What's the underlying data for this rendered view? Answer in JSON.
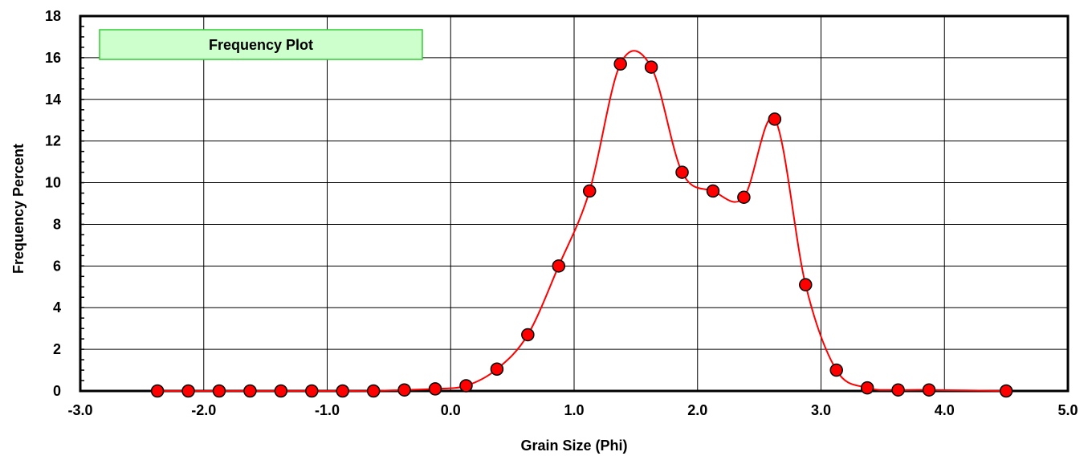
{
  "chart_data": {
    "type": "line",
    "title": "Frequency Plot",
    "xlabel": "Grain Size (Phi)",
    "ylabel": "Frequency Percent",
    "xlim": [
      -3.0,
      5.0
    ],
    "ylim": [
      0,
      18
    ],
    "x_ticks": [
      -3.0,
      -2.0,
      -1.0,
      0.0,
      1.0,
      2.0,
      3.0,
      4.0,
      5.0
    ],
    "x_tick_labels": [
      "-3.0",
      "-2.0",
      "-1.0",
      "0.0",
      "1.0",
      "2.0",
      "3.0",
      "4.0",
      "5.0"
    ],
    "y_ticks": [
      0,
      2,
      4,
      6,
      8,
      10,
      12,
      14,
      16,
      18
    ],
    "y_tick_labels": [
      "0",
      "2",
      "4",
      "6",
      "8",
      "10",
      "12",
      "14",
      "16",
      "18"
    ],
    "grid": true,
    "legend_position": "top-left",
    "series": [
      {
        "x": [
          -2.375,
          -2.125,
          -1.875,
          -1.625,
          -1.375,
          -1.125,
          -0.875,
          -0.625,
          -0.375,
          -0.125,
          0.125,
          0.375,
          0.625,
          0.875,
          1.125,
          1.375,
          1.625,
          1.875,
          2.125,
          2.375,
          2.625,
          2.875,
          3.125,
          3.375,
          3.625,
          3.875,
          4.5
        ],
        "values": [
          0.0,
          0.0,
          0.0,
          0.0,
          0.0,
          0.0,
          0.0,
          0.0,
          0.05,
          0.1,
          0.25,
          1.05,
          2.7,
          6.0,
          9.6,
          15.7,
          15.55,
          10.5,
          9.6,
          9.3,
          13.05,
          5.1,
          1.0,
          0.15,
          0.05,
          0.05,
          0.0
        ],
        "line_color": "#ff0000",
        "marker_color": "#ff0000",
        "marker_edge": "#000000"
      }
    ]
  }
}
